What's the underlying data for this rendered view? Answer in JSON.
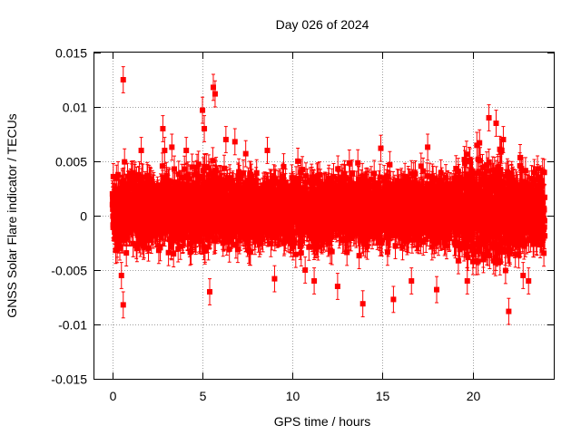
{
  "chart_data": {
    "type": "scatter",
    "title": "Day 026 of 2024",
    "xlabel": "GPS time / hours",
    "ylabel": "GNSS Solar Flare indicator / TECUs",
    "xlim": [
      -1,
      24.5
    ],
    "ylim": [
      -0.015,
      0.015
    ],
    "x_ticks": [
      0,
      5,
      10,
      15,
      20
    ],
    "x_tick_labels": [
      "0",
      "5",
      "10",
      "15",
      "20"
    ],
    "y_ticks": [
      0.015,
      0.01,
      0.005,
      0,
      -0.005,
      -0.01,
      -0.015
    ],
    "y_tick_labels": [
      "0.015",
      "0.01",
      "0.005",
      "0",
      "-0.005",
      "-0.01",
      "-0.015"
    ],
    "grid": true,
    "legend": "none",
    "marker": "filled-square",
    "error_bars": true,
    "series_color": "#ff0000",
    "series": [
      {
        "x": [
          0.0,
          0.6,
          0.6,
          0.5,
          2.8,
          3.3,
          5.0,
          5.1,
          5.6,
          5.7,
          5.4,
          6.3,
          6.8,
          9.0,
          11.2,
          12.5,
          13.9,
          15.6,
          16.6,
          18.0,
          19.7,
          20.9,
          21.3,
          22.0,
          22.8,
          23.6,
          1.6,
          2.9,
          4.1,
          7.4,
          8.6,
          10.7,
          14.9,
          17.5,
          21.7,
          23.1
        ],
        "y": [
          0.002,
          0.0125,
          -0.0082,
          -0.0055,
          0.008,
          0.0063,
          0.0097,
          0.008,
          0.0118,
          0.0112,
          -0.007,
          0.007,
          0.0068,
          -0.0058,
          -0.006,
          -0.0065,
          -0.0081,
          -0.0077,
          -0.006,
          -0.0068,
          -0.006,
          0.009,
          0.0085,
          -0.0088,
          -0.0055,
          0.0035,
          0.006,
          0.006,
          0.006,
          0.0057,
          0.006,
          -0.005,
          0.0062,
          0.0063,
          0.007,
          -0.006
        ]
      }
    ],
    "point_cloud": {
      "x_range": [
        0.0,
        24.0
      ],
      "y_center": 0.0005,
      "y_spread": 0.0035,
      "error_bar_half_height": 0.0012,
      "approx_points": 4320
    }
  }
}
